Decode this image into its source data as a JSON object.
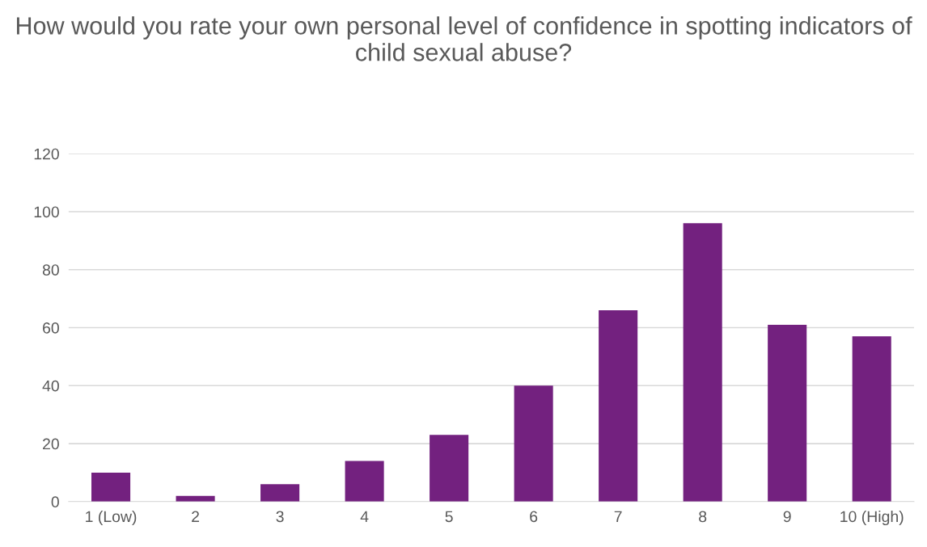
{
  "chart_data": {
    "type": "bar",
    "title": "How would you rate your own personal level of confidence in spotting indicators of child sexual abuse?",
    "categories": [
      "1 (Low)",
      "2",
      "3",
      "4",
      "5",
      "6",
      "7",
      "8",
      "9",
      "10 (High)"
    ],
    "values": [
      10,
      2,
      6,
      14,
      23,
      40,
      66,
      96,
      61,
      57
    ],
    "color": "#73217f",
    "ylim": [
      0,
      120
    ],
    "yticks": [
      0,
      20,
      40,
      60,
      80,
      100,
      120
    ],
    "grid": "y",
    "legend": false
  }
}
